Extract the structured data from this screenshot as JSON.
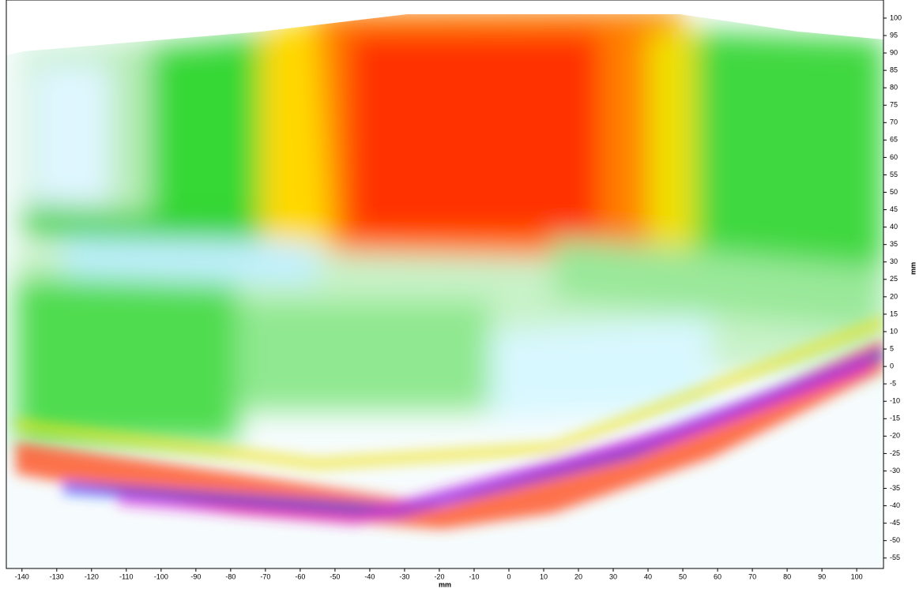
{
  "chart_data": {
    "type": "heatmap",
    "x_label": "mm",
    "y_label": "mm",
    "xlim": [
      -144.5,
      107.7
    ],
    "ylim": [
      -58,
      105.2
    ],
    "xticks": [
      -140,
      -130,
      -120,
      -110,
      -100,
      -90,
      -80,
      -70,
      -60,
      -50,
      -40,
      -30,
      -20,
      -10,
      0,
      10,
      20,
      30,
      40,
      50,
      60,
      70,
      80,
      90,
      100
    ],
    "yticks": [
      -55,
      -50,
      -45,
      -40,
      -35,
      -30,
      -25,
      -20,
      -15,
      -10,
      -5,
      0,
      5,
      10,
      15,
      20,
      25,
      30,
      35,
      40,
      45,
      50,
      55,
      60,
      65,
      70,
      75,
      80,
      85,
      90,
      95,
      100
    ],
    "y_axis_side": "right"
  }
}
